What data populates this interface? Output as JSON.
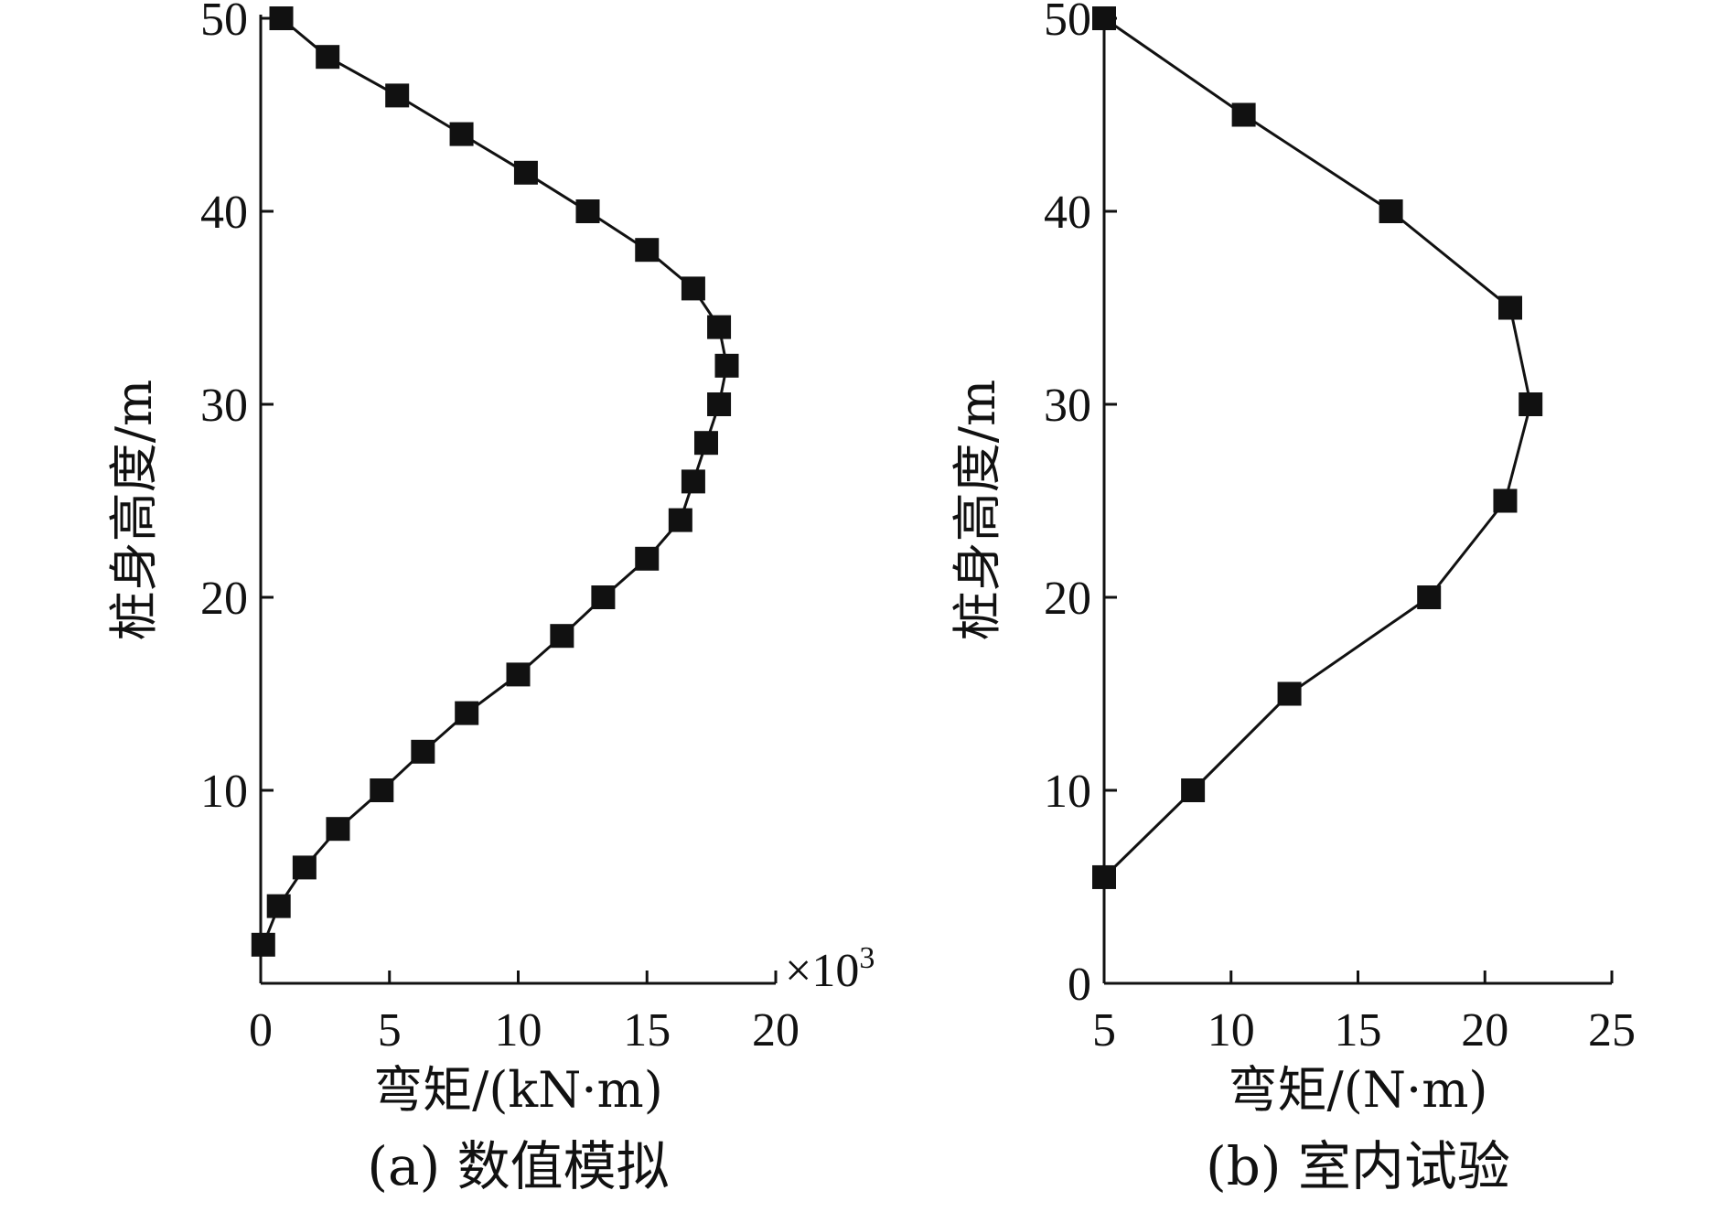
{
  "chart_data": [
    {
      "type": "line",
      "caption": "(a) 数值模拟",
      "xlabel": "弯矩/(kN·m)",
      "ylabel": "桩身高度/m",
      "x_multiplier": "×10",
      "x_multiplier_exp": "3",
      "xlim": [
        0,
        20
      ],
      "ylim": [
        0,
        50
      ],
      "xticks": [
        0,
        5,
        10,
        15,
        20
      ],
      "yticks": [
        10,
        20,
        30,
        40,
        50
      ],
      "grid": false,
      "series": [
        {
          "marker": "square",
          "color": "#111111",
          "x": [
            0.1,
            0.7,
            1.7,
            3.0,
            4.7,
            6.3,
            8.0,
            10.0,
            11.7,
            13.3,
            15.0,
            16.3,
            16.8,
            17.3,
            17.8,
            18.1,
            17.8,
            16.8,
            15.0,
            12.7,
            10.3,
            7.8,
            5.3,
            2.6,
            0.8
          ],
          "y": [
            2,
            4,
            6,
            8,
            10,
            12,
            14,
            16,
            18,
            20,
            22,
            24,
            26,
            28,
            30,
            32,
            34,
            36,
            38,
            40,
            42,
            44,
            46,
            48,
            50
          ]
        }
      ]
    },
    {
      "type": "line",
      "caption": "(b) 室内试验",
      "xlabel": "弯矩/(N·m)",
      "ylabel": "桩身高度/m",
      "xlim": [
        5,
        25
      ],
      "ylim": [
        0,
        50
      ],
      "xticks": [
        5,
        10,
        15,
        20,
        25
      ],
      "yticks": [
        0,
        10,
        20,
        30,
        40,
        50
      ],
      "grid": false,
      "series": [
        {
          "marker": "square",
          "color": "#111111",
          "x": [
            5.0,
            8.5,
            12.3,
            17.8,
            20.8,
            21.8,
            21.0,
            16.3,
            10.5,
            5.0
          ],
          "y": [
            5.5,
            10,
            15,
            20,
            25,
            30,
            35,
            40,
            45,
            50
          ]
        }
      ]
    }
  ]
}
